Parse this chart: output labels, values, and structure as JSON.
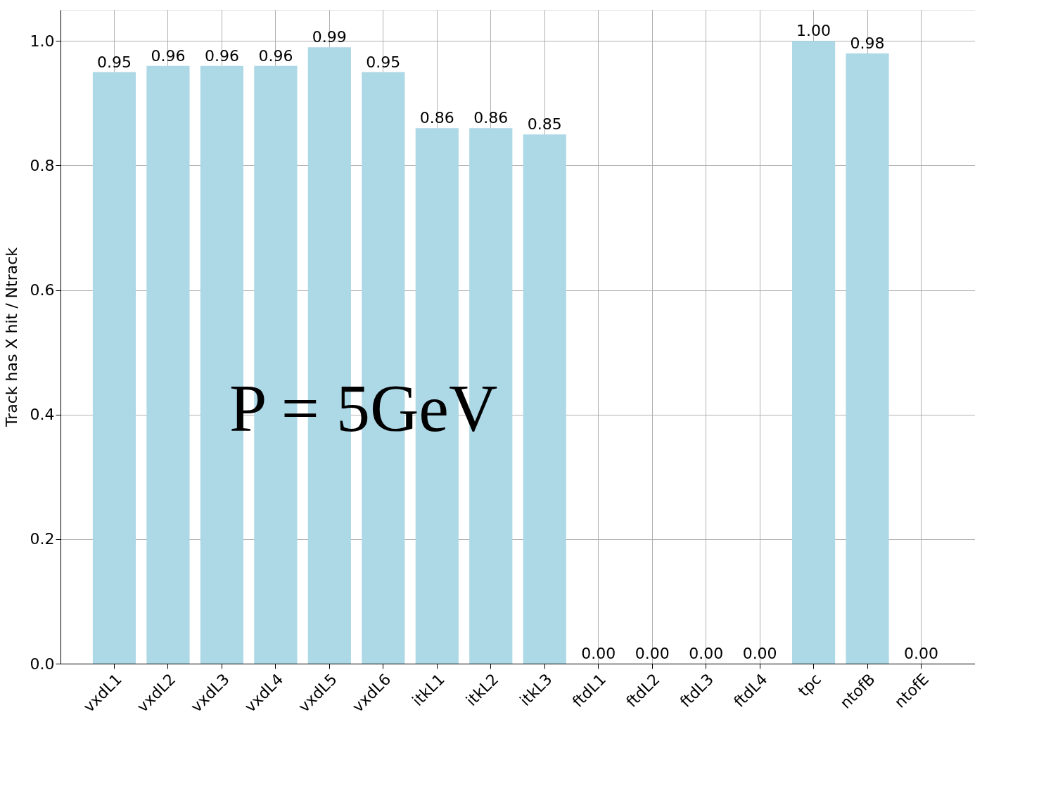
{
  "chart_data": {
    "type": "bar",
    "categories": [
      "vxdL1",
      "vxdL2",
      "vxdL3",
      "vxdL4",
      "vxdL5",
      "vxdL6",
      "itkL1",
      "itkL2",
      "itkL3",
      "ftdL1",
      "ftdL2",
      "ftdL3",
      "ftdL4",
      "tpc",
      "ntofB",
      "ntofE"
    ],
    "values": [
      0.95,
      0.96,
      0.96,
      0.96,
      0.99,
      0.95,
      0.86,
      0.86,
      0.85,
      0,
      0,
      0,
      0,
      1.0,
      0.98,
      0
    ],
    "value_labels": [
      "0.95",
      "0.96",
      "0.96",
      "0.96",
      "0.99",
      "0.95",
      "0.86",
      "0.86",
      "0.85",
      "0.00",
      "0.00",
      "0.00",
      "0.00",
      "1.00",
      "0.98",
      "0.00"
    ],
    "color": "#add8e6",
    "ylabel": "Track has X hit / Ntrack",
    "ylim": [
      0,
      1.05
    ],
    "yticks": [
      {
        "value": 0,
        "label": "0.0"
      },
      {
        "value": 0.2,
        "label": "0.2"
      },
      {
        "value": 0.4,
        "label": "0.4"
      },
      {
        "value": 0.6,
        "label": "0.6"
      },
      {
        "value": 0.8,
        "label": "0.8"
      },
      {
        "value": 1,
        "label": "1.0"
      }
    ],
    "grid": true,
    "annotations": [
      "P = 5GeV"
    ]
  }
}
